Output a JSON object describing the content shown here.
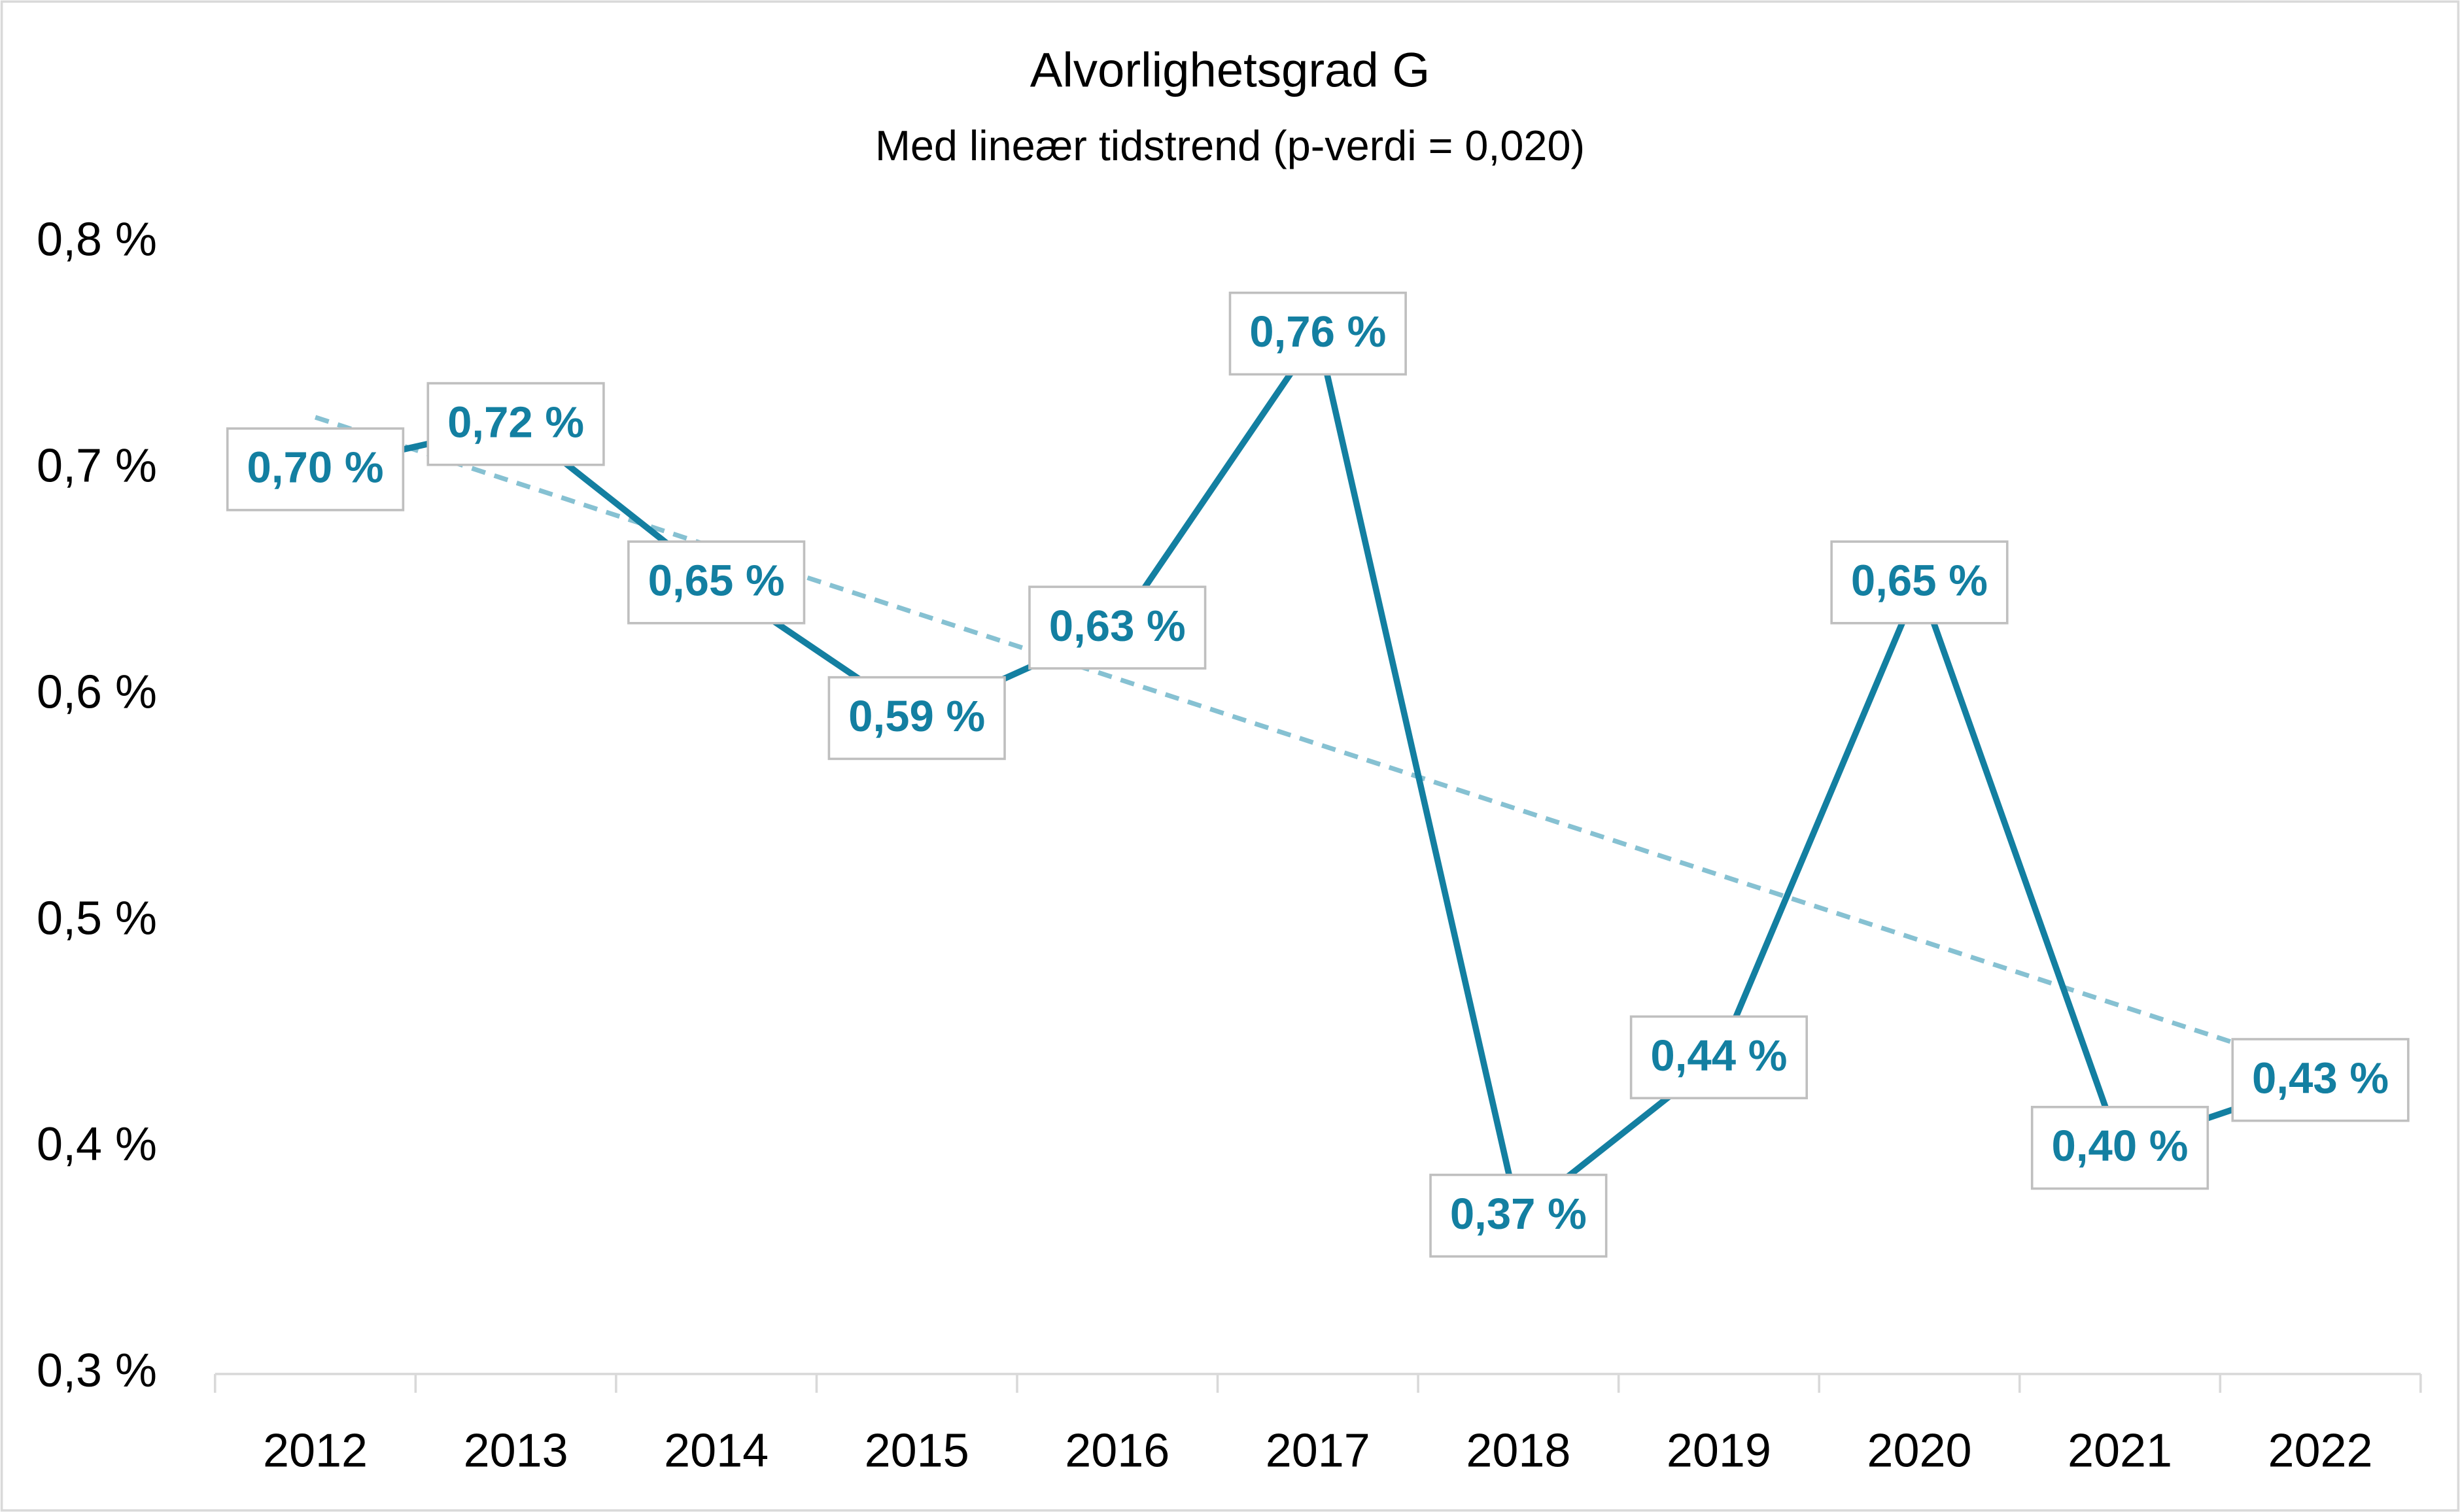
{
  "chart_data": {
    "type": "line",
    "title": "Alvorlighetsgrad G",
    "subtitle": "Med lineær tidstrend (p-verdi = 0,020)",
    "categories": [
      "2012",
      "2013",
      "2014",
      "2015",
      "2016",
      "2017",
      "2018",
      "2019",
      "2020",
      "2021",
      "2022"
    ],
    "values": [
      0.7,
      0.72,
      0.65,
      0.59,
      0.63,
      0.76,
      0.37,
      0.44,
      0.65,
      0.4,
      0.43
    ],
    "value_labels": [
      "0,70 %",
      "0,72 %",
      "0,65 %",
      "0,59 %",
      "0,63 %",
      "0,76 %",
      "0,37 %",
      "0,44 %",
      "0,65 %",
      "0,40 %",
      "0,43 %"
    ],
    "color": "#137fa1",
    "trendline": {
      "values": [
        0.723,
        0.434
      ],
      "color": "#86c1d2",
      "dashed": true
    },
    "ylim": [
      0.3,
      0.8
    ],
    "yticks": [
      {
        "value": 0.3,
        "label": "0,3 %"
      },
      {
        "value": 0.4,
        "label": "0,4 %"
      },
      {
        "value": 0.5,
        "label": "0,5 %"
      },
      {
        "value": 0.6,
        "label": "0,6 %"
      },
      {
        "value": 0.7,
        "label": "0,7 %"
      },
      {
        "value": 0.8,
        "label": "0,8 %"
      }
    ],
    "grid": false
  }
}
